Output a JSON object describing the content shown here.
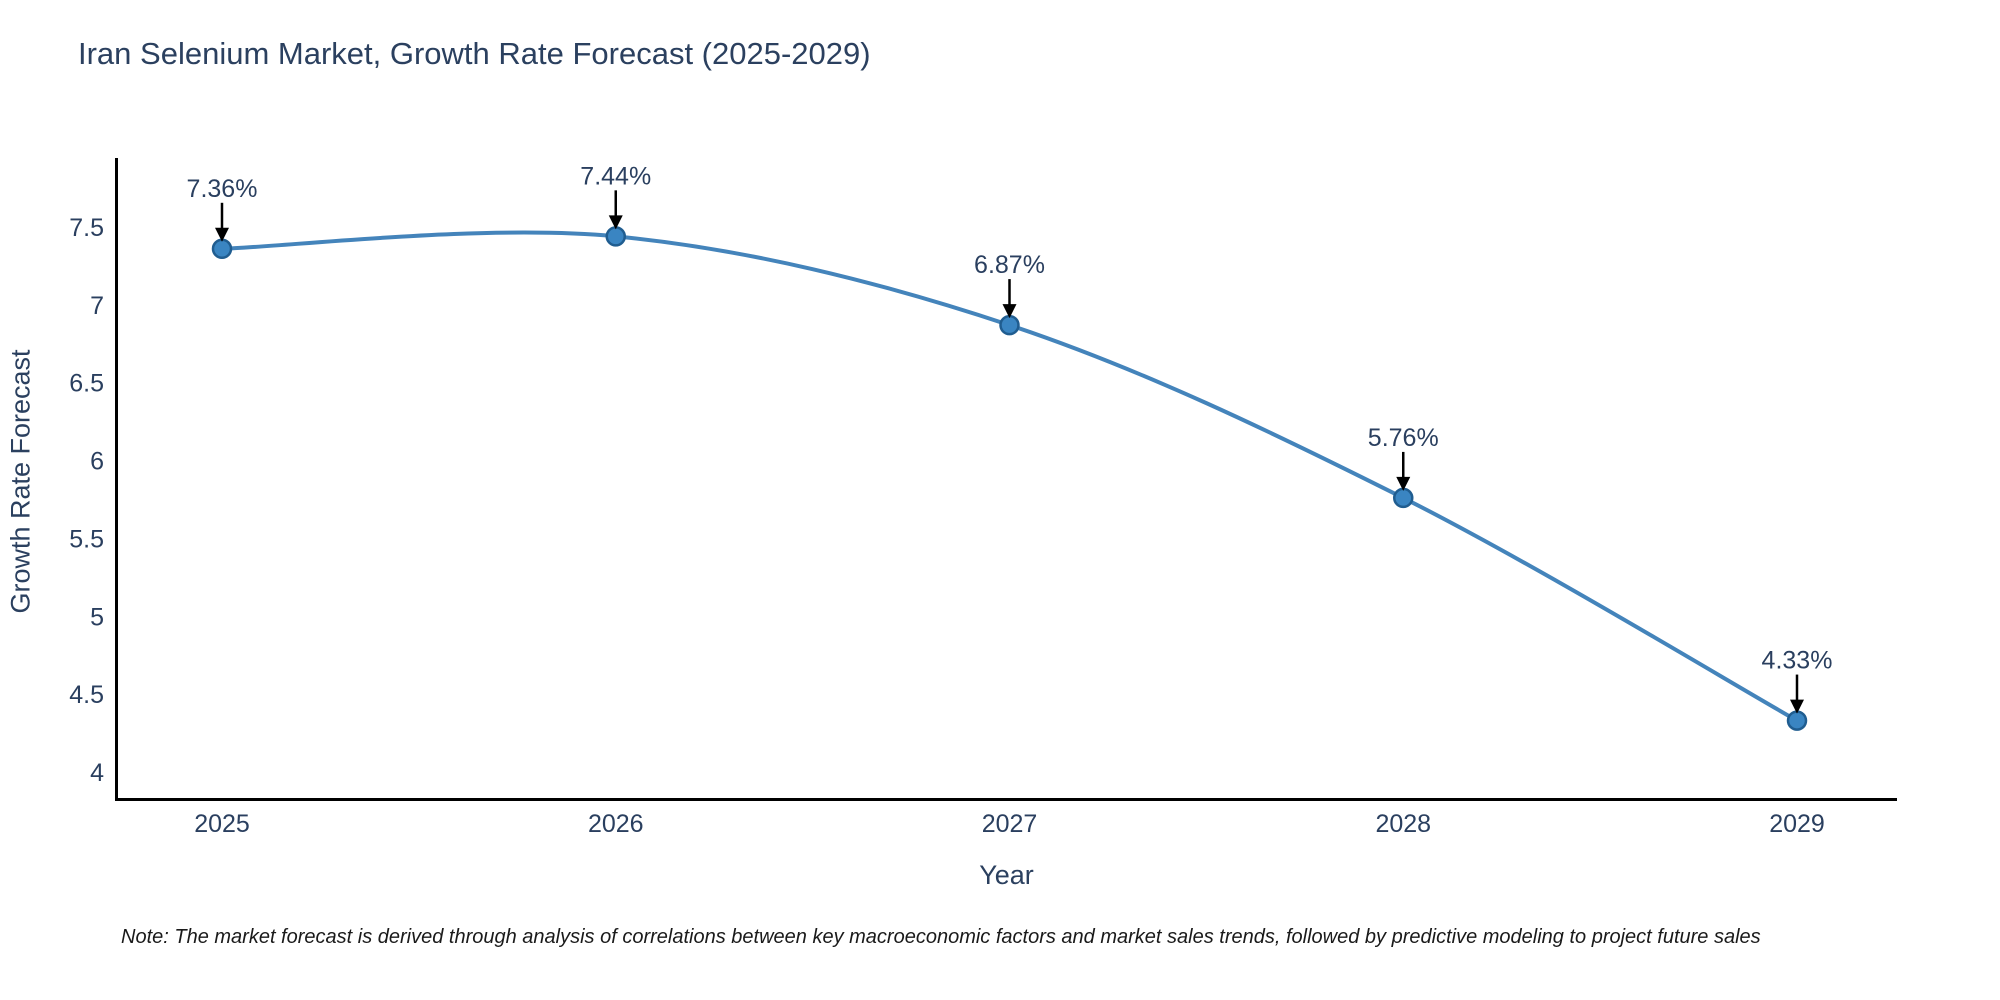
{
  "figure": {
    "background_color": "#ffffff"
  },
  "chart_data": {
    "type": "line",
    "title": "Iran Selenium Market, Growth Rate Forecast (2025-2029)",
    "xlabel": "Year",
    "ylabel": "Growth Rate Forecast",
    "categories": [
      "2025",
      "2026",
      "2027",
      "2028",
      "2029"
    ],
    "values": [
      7.36,
      7.44,
      6.87,
      5.76,
      4.33
    ],
    "point_labels": [
      "7.36%",
      "7.44%",
      "6.87%",
      "5.76%",
      "4.33%"
    ],
    "yticks": [
      4,
      4.5,
      5,
      5.5,
      6,
      6.5,
      7,
      7.5
    ],
    "ylim": [
      3.82,
      7.94
    ],
    "line_shape": "spline",
    "grid": false,
    "legend_position": "none",
    "annotation_style": "label-with-down-arrow",
    "colors": {
      "line": "#4484bb",
      "marker_fill": "#3a85c2",
      "marker_edge": "#205d90",
      "axis_line": "#000000",
      "text": "#2a3f5f",
      "arrow": "#000000",
      "note_text": "#1a1a1a"
    }
  },
  "note": "Note: The market forecast is derived through analysis of correlations between key macroeconomic factors and market sales trends, followed by predictive modeling to project future sales"
}
